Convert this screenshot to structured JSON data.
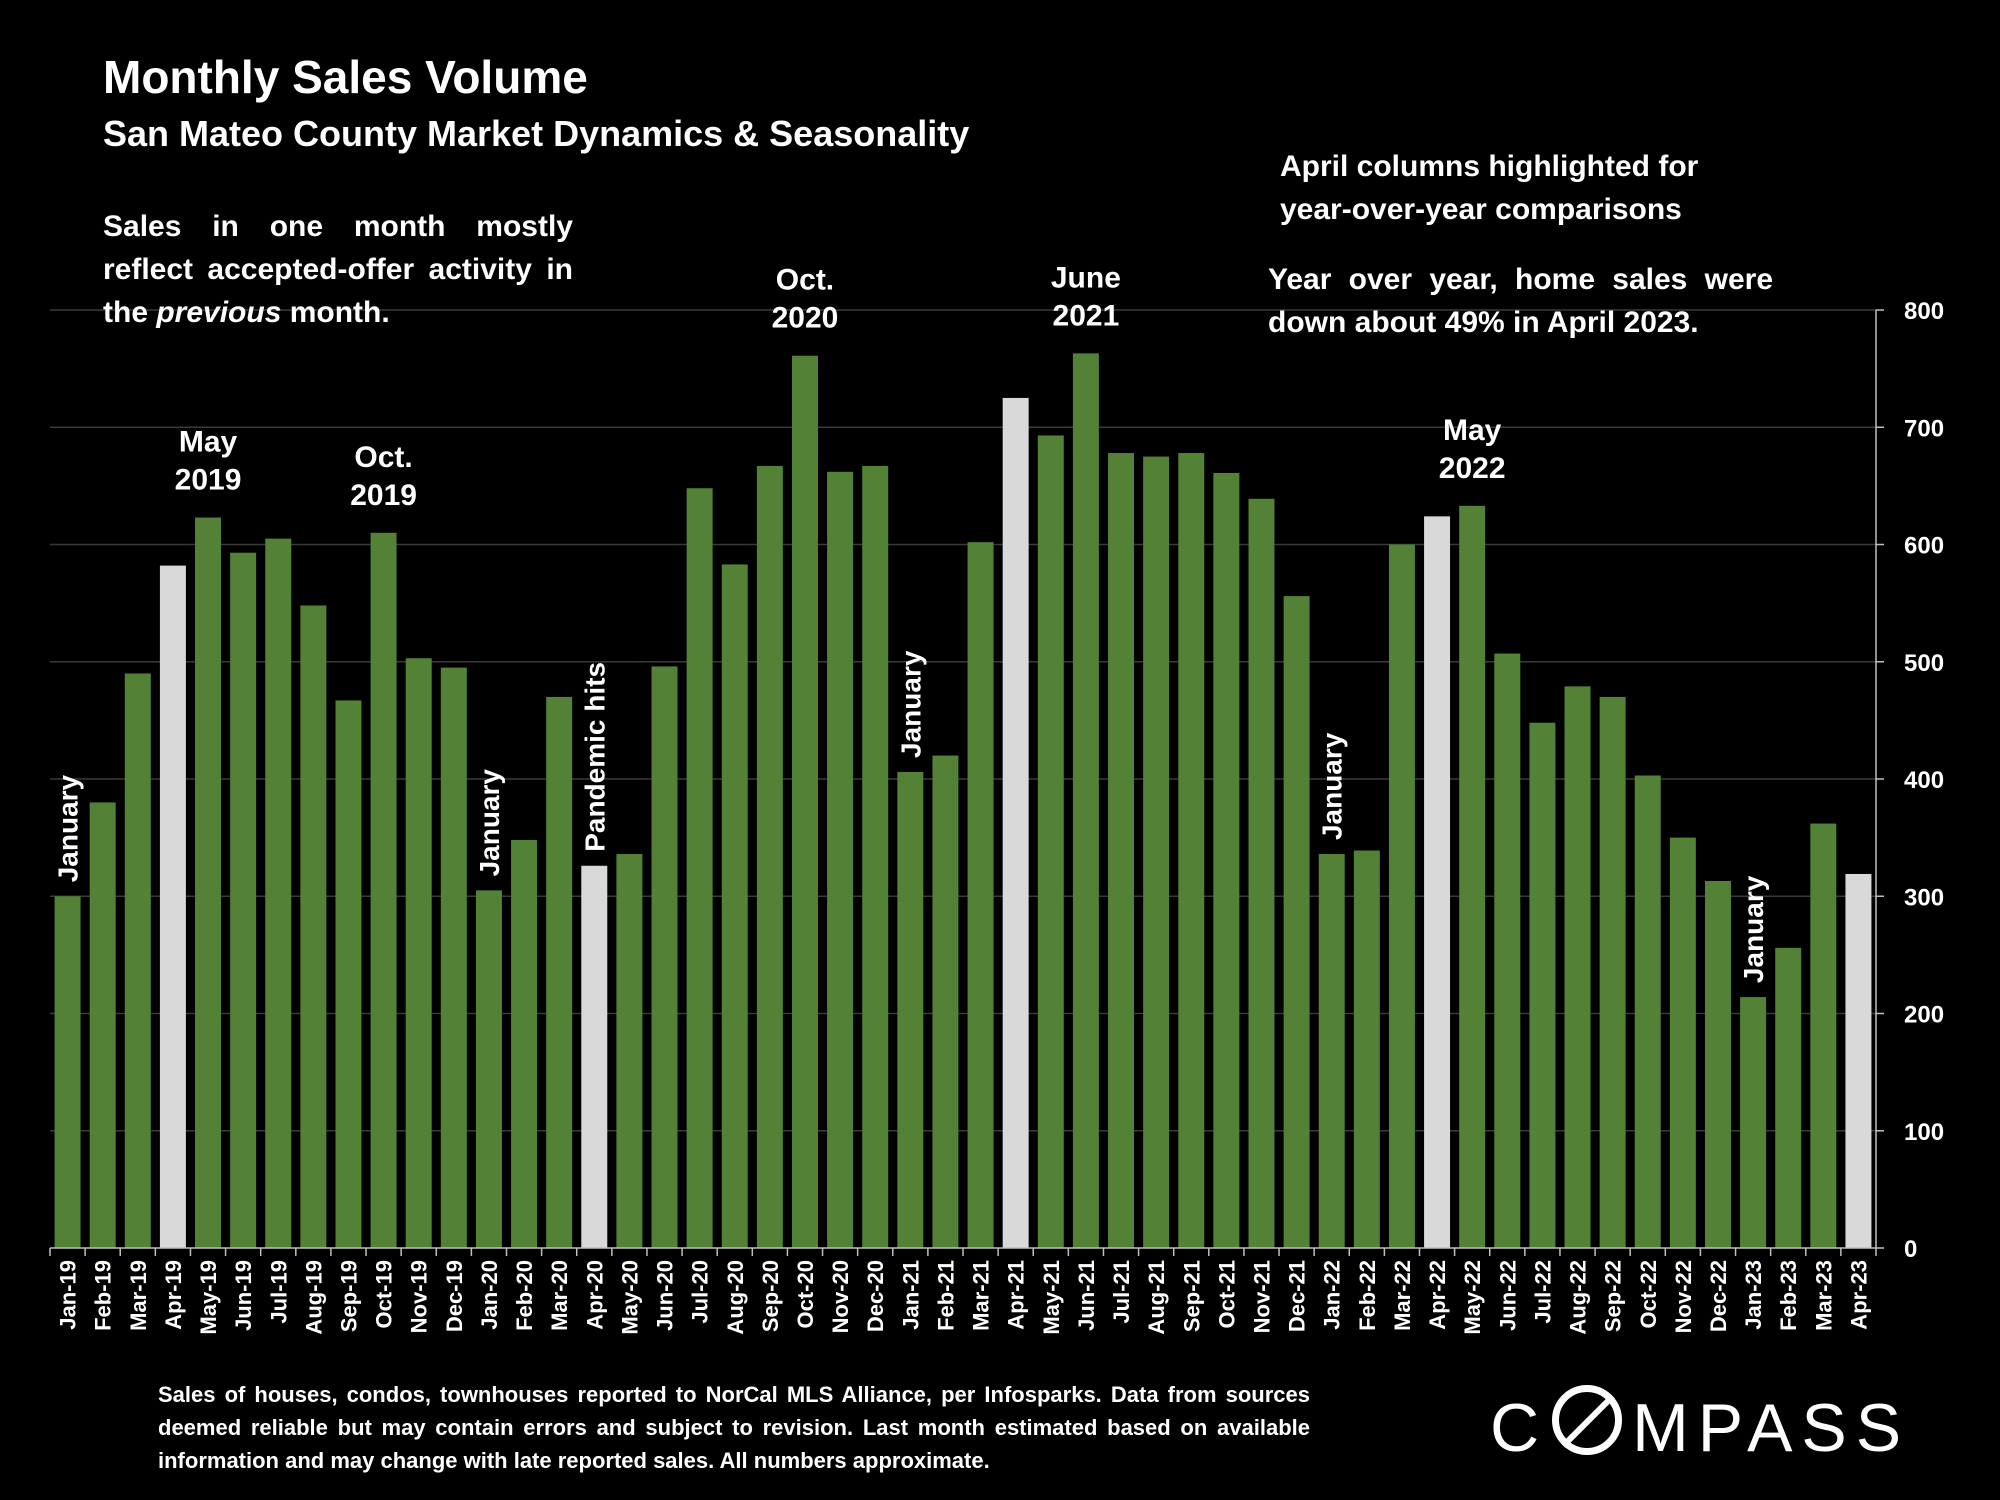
{
  "header": {
    "title": "Monthly Sales Volume",
    "subtitle": "San Mateo County Market Dynamics & Seasonality"
  },
  "notes": {
    "left_line1": "Sales in one month mostly reflect accepted-offer activity in the ",
    "left_em": "previous",
    "left_line2": " month.",
    "april": "April columns highlighted for year-over-year comparisons",
    "yoy_line1": "Year over year, home sales were",
    "yoy_line2": "down  about 49% in April 2023."
  },
  "footer": "Sales of houses, condos, townhouses reported to NorCal MLS Alliance, per Infosparks. Data from sources deemed reliable but may contain errors and subject to revision. Last month estimated based on available information and may change with late reported sales. All numbers approximate.",
  "logo": {
    "pre": "C",
    "post": "MPASS"
  },
  "colors": {
    "bar": "#538135",
    "highlight": "#d9d9d9",
    "background": "#000000",
    "grid": "#3a3a3a"
  },
  "chart_data": {
    "type": "bar",
    "categories": [
      "Jan-19",
      "Feb-19",
      "Mar-19",
      "Apr-19",
      "May-19",
      "Jun-19",
      "Jul-19",
      "Aug-19",
      "Sep-19",
      "Oct-19",
      "Nov-19",
      "Dec-19",
      "Jan-20",
      "Feb-20",
      "Mar-20",
      "Apr-20",
      "May-20",
      "Jun-20",
      "Jul-20",
      "Aug-20",
      "Sep-20",
      "Oct-20",
      "Nov-20",
      "Dec-20",
      "Jan-21",
      "Feb-21",
      "Mar-21",
      "Apr-21",
      "May-21",
      "Jun-21",
      "Jul-21",
      "Aug-21",
      "Sep-21",
      "Oct-21",
      "Nov-21",
      "Dec-21",
      "Jan-22",
      "Feb-22",
      "Mar-22",
      "Apr-22",
      "May-22",
      "Jun-22",
      "Jul-22",
      "Aug-22",
      "Sep-22",
      "Oct-22",
      "Nov-22",
      "Dec-22",
      "Jan-23",
      "Feb-23",
      "Mar-23",
      "Apr-23"
    ],
    "values": [
      300,
      380,
      490,
      582,
      623,
      593,
      605,
      548,
      467,
      610,
      503,
      495,
      305,
      348,
      470,
      326,
      336,
      496,
      648,
      583,
      667,
      761,
      662,
      667,
      406,
      420,
      602,
      725,
      693,
      763,
      678,
      675,
      678,
      661,
      639,
      556,
      336,
      339,
      600,
      624,
      633,
      507,
      448,
      479,
      470,
      403,
      350,
      313,
      214,
      256,
      362,
      319
    ],
    "highlight_indices": [
      3,
      15,
      27,
      39,
      51
    ],
    "ylim": [
      0,
      800
    ],
    "yticks": [
      0,
      100,
      200,
      300,
      400,
      500,
      600,
      700,
      800
    ],
    "y_axis_side": "right",
    "grid": true,
    "annotations": [
      {
        "index": 0,
        "text": "January",
        "style": "vertical"
      },
      {
        "index": 12,
        "text": "January",
        "style": "vertical"
      },
      {
        "index": 15,
        "text": "Pandemic hits",
        "style": "vertical"
      },
      {
        "index": 24,
        "text": "January",
        "style": "vertical"
      },
      {
        "index": 36,
        "text": "January",
        "style": "vertical"
      },
      {
        "index": 48,
        "text": "January",
        "style": "vertical"
      },
      {
        "index": 4,
        "text": [
          "May",
          "2019"
        ],
        "style": "stacked"
      },
      {
        "index": 9,
        "text": [
          "Oct.",
          "2019"
        ],
        "style": "stacked"
      },
      {
        "index": 21,
        "text": [
          "Oct.",
          "2020"
        ],
        "style": "stacked"
      },
      {
        "index": 29,
        "text": [
          "June",
          "2021"
        ],
        "style": "stacked"
      },
      {
        "index": 40,
        "text": [
          "May",
          "2022"
        ],
        "style": "stacked"
      }
    ]
  }
}
